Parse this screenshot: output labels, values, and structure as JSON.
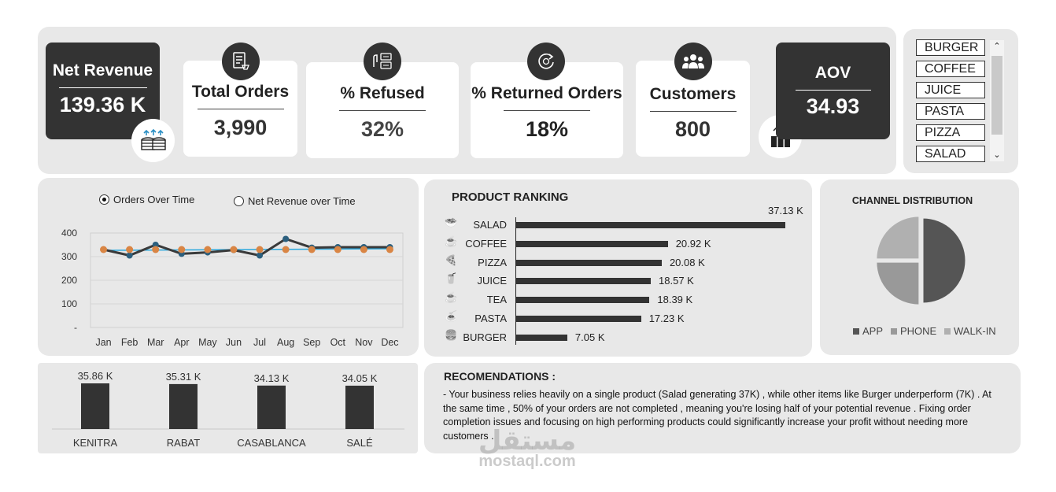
{
  "kpis": {
    "net_revenue": {
      "title": "Net Revenue",
      "value": "139.36 K"
    },
    "total_orders": {
      "title": "Total Orders",
      "value": "3,990"
    },
    "refused": {
      "title": "% Refused",
      "value": "32%"
    },
    "returned": {
      "title": "% Returned Orders",
      "value": "18%"
    },
    "customers": {
      "title": "Customers",
      "value": "800"
    },
    "aov": {
      "title": "AOV",
      "value": "34.93"
    }
  },
  "slicer": {
    "items": [
      "BURGER",
      "COFFEE",
      "JUICE",
      "PASTA",
      "PIZZA",
      "SALAD"
    ]
  },
  "time_chart": {
    "options": [
      "Orders Over Time",
      "Net Revenue over Time"
    ],
    "selected": 0,
    "y_ticks": [
      "400",
      "300",
      "200",
      "100",
      "-"
    ],
    "months": [
      "Jan",
      "Feb",
      "Mar",
      "Apr",
      "May",
      "Jun",
      "Jul",
      "Aug",
      "Sep",
      "Oct",
      "Nov",
      "Dec"
    ]
  },
  "ranking": {
    "title": "PRODUCT RANKING",
    "items": [
      {
        "name": "SALAD",
        "label": "37.13 K",
        "icon": "salad-icon"
      },
      {
        "name": "COFFEE",
        "label": "20.92 K",
        "icon": "coffee-icon"
      },
      {
        "name": "PIZZA",
        "label": "20.08 K",
        "icon": "pizza-icon"
      },
      {
        "name": "JUICE",
        "label": "18.57 K",
        "icon": "juice-icon"
      },
      {
        "name": "TEA",
        "label": "18.39 K",
        "icon": "tea-icon"
      },
      {
        "name": "PASTA",
        "label": "17.23 K",
        "icon": "pasta-icon"
      },
      {
        "name": "BURGER",
        "label": "7.05 K",
        "icon": "burger-icon"
      }
    ]
  },
  "channel": {
    "title": "CHANNEL DISTRIBUTION",
    "legend": [
      "APP",
      "PHONE",
      "WALK-IN"
    ]
  },
  "cities": {
    "items": [
      {
        "name": "KENITRA",
        "label": "35.86 K"
      },
      {
        "name": "RABAT",
        "label": "35.31 K"
      },
      {
        "name": "CASABLANCA",
        "label": "34.13 K"
      },
      {
        "name": "SALÉ",
        "label": "34.05 K"
      }
    ]
  },
  "recommendations": {
    "title": "RECOMENDATIONS :",
    "text": "- Your business relies heavily on a single product (Salad generating 37K) , while other items like Burger underperform (7K) . At the same time , 50% of your orders are not completed , meaning you're losing half of your potential revenue . Fixing order completion issues and focusing on high performing products could significantly increase your profit without needing more customers ."
  },
  "watermark": {
    "arabic": "مستقل",
    "latin": "mostaql.com"
  },
  "colors": {
    "dark": "#333333",
    "panel": "#e8e8e8",
    "orders_line": "#3a3a3a",
    "orders_markers": "#2b5f7e",
    "revenue_markers": "#d98544",
    "avg_line": "#2aa7dc",
    "app": "#555555",
    "phone": "#999999",
    "walkin": "#b0b0b0"
  },
  "chart_data": [
    {
      "type": "line",
      "title": "",
      "x": [
        "Jan",
        "Feb",
        "Mar",
        "Apr",
        "May",
        "Jun",
        "Jul",
        "Aug",
        "Sep",
        "Oct",
        "Nov",
        "Dec"
      ],
      "series": [
        {
          "name": "Orders Over Time",
          "values": [
            330,
            305,
            350,
            312,
            318,
            328,
            305,
            375,
            338,
            340,
            340,
            340
          ]
        },
        {
          "name": "Net Revenue over Time",
          "values": [
            330,
            330,
            330,
            330,
            330,
            330,
            330,
            330,
            330,
            330,
            330,
            330
          ]
        }
      ],
      "ylim": [
        0,
        400
      ],
      "grid": true
    },
    {
      "type": "bar",
      "orientation": "horizontal",
      "title": "PRODUCT RANKING",
      "categories": [
        "SALAD",
        "COFFEE",
        "PIZZA",
        "JUICE",
        "TEA",
        "PASTA",
        "BURGER"
      ],
      "values": [
        37.13,
        20.92,
        20.08,
        18.57,
        18.39,
        17.23,
        7.05
      ],
      "unit": "K"
    },
    {
      "type": "pie",
      "title": "CHANNEL DISTRIBUTION",
      "categories": [
        "APP",
        "PHONE",
        "WALK-IN"
      ],
      "values": [
        50,
        25,
        25
      ],
      "legend": "bottom"
    },
    {
      "type": "bar",
      "title": "",
      "categories": [
        "KENITRA",
        "RABAT",
        "CASABLANCA",
        "SALÉ"
      ],
      "values": [
        35.86,
        35.31,
        34.13,
        34.05
      ],
      "unit": "K"
    }
  ]
}
